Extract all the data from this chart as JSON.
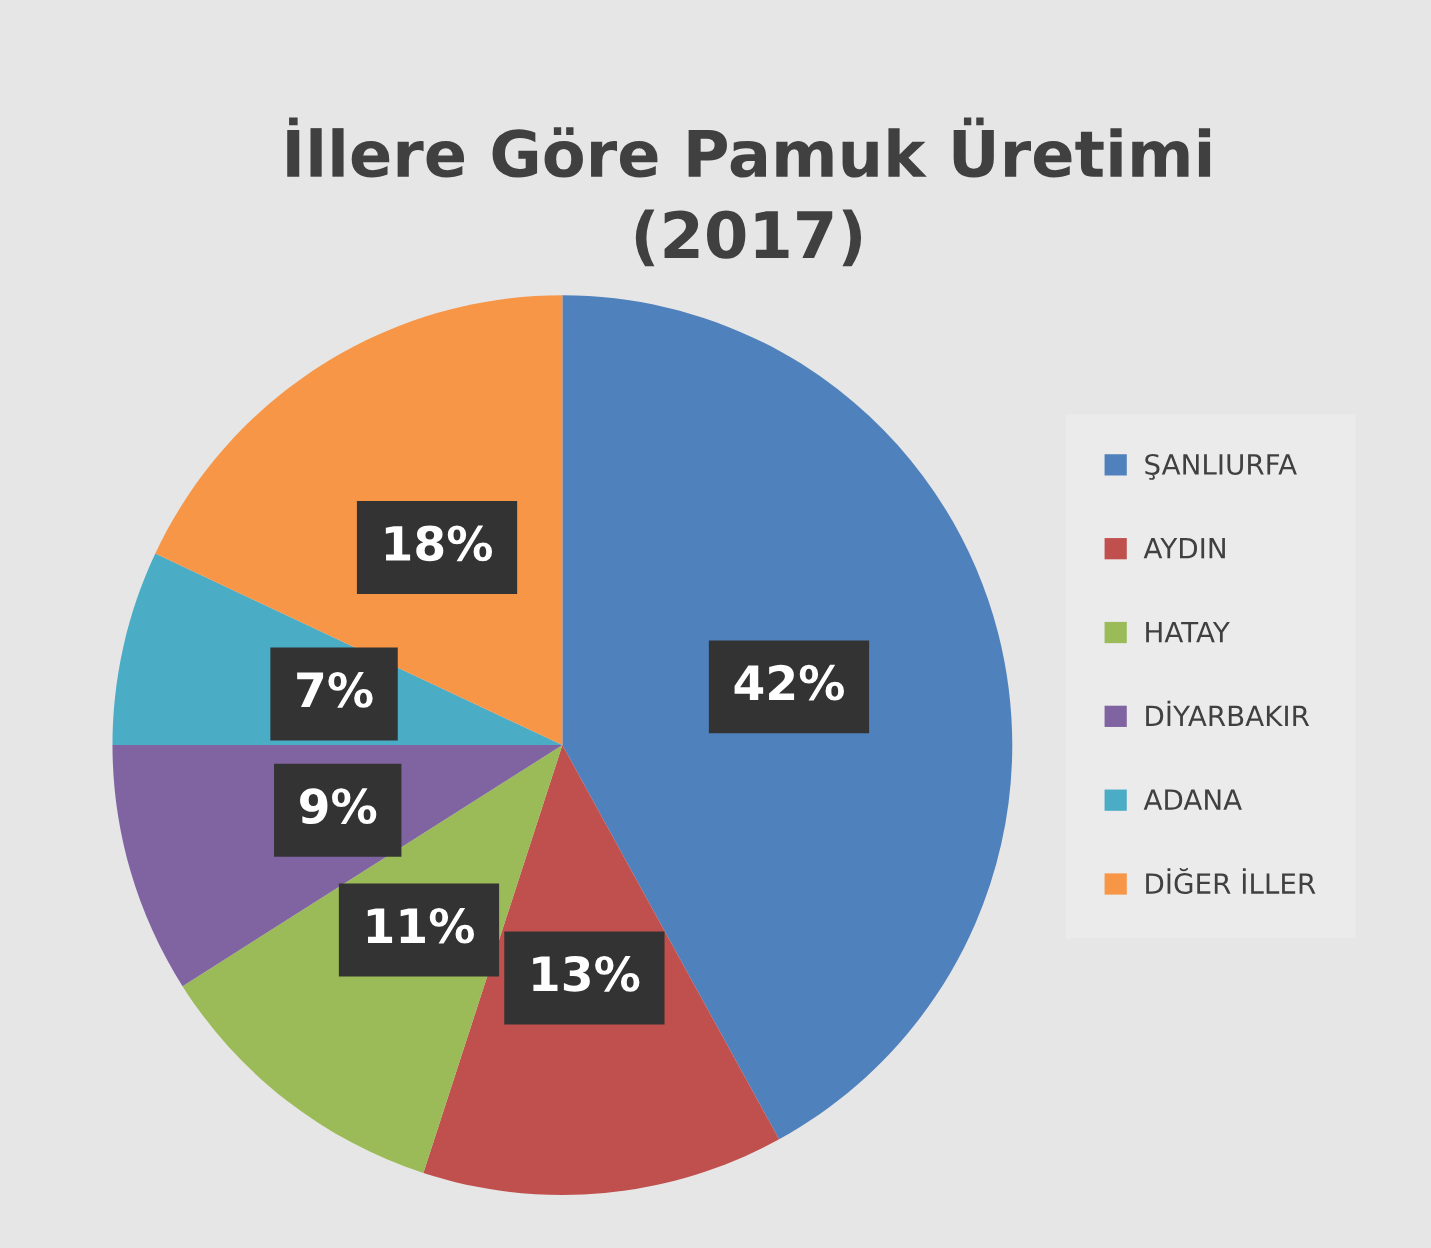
{
  "chart_data": {
    "type": "pie",
    "title": "İllere Göre Pamuk Üretimi\n(2017)",
    "categories": [
      "ŞANLIURFA",
      "AYDIN",
      "HATAY",
      "DİYARBAKIR",
      "ADANA",
      "DİĞER İLLER"
    ],
    "values": [
      42,
      13,
      11,
      9,
      7,
      18
    ],
    "colors": [
      "#4f81bd",
      "#c0504d",
      "#9bbb59",
      "#8064a2",
      "#4bacc6",
      "#f79646"
    ],
    "value_labels": [
      "42%",
      "13%",
      "11%",
      "9%",
      "7%",
      "18%"
    ],
    "legend": "right"
  }
}
